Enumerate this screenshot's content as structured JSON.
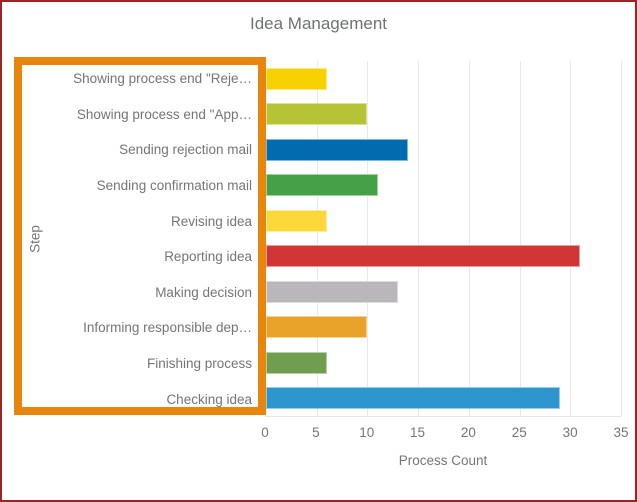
{
  "chart_data": {
    "type": "bar",
    "orientation": "horizontal",
    "title": "Idea Management",
    "xlabel": "Process Count",
    "ylabel": "Step",
    "xlim": [
      0,
      35
    ],
    "x_ticks": [
      "0",
      "5",
      "10",
      "15",
      "20",
      "25",
      "30",
      "35"
    ],
    "grid": true,
    "legend": false,
    "categories": [
      "Showing process end \"Reje…",
      "Showing process end \"App…",
      "Sending rejection mail",
      "Sending confirmation mail",
      "Revising idea",
      "Reporting idea",
      "Making decision",
      "Informing responsible dep…",
      "Finishing process",
      "Checking idea"
    ],
    "values": [
      6,
      10,
      14,
      11,
      6,
      31,
      13,
      10,
      6,
      29
    ],
    "colors": [
      "#F8D102",
      "#B5C334",
      "#006CB0",
      "#45A148",
      "#FDD83B",
      "#D23535",
      "#BAB6BB",
      "#EAA32A",
      "#6F9F4E",
      "#2E96CF"
    ]
  },
  "annotation": {
    "highlight_box_color": "#E8850C",
    "highlight_target": "y-axis step labels"
  },
  "frame": {
    "border_color": "#9E2424"
  }
}
